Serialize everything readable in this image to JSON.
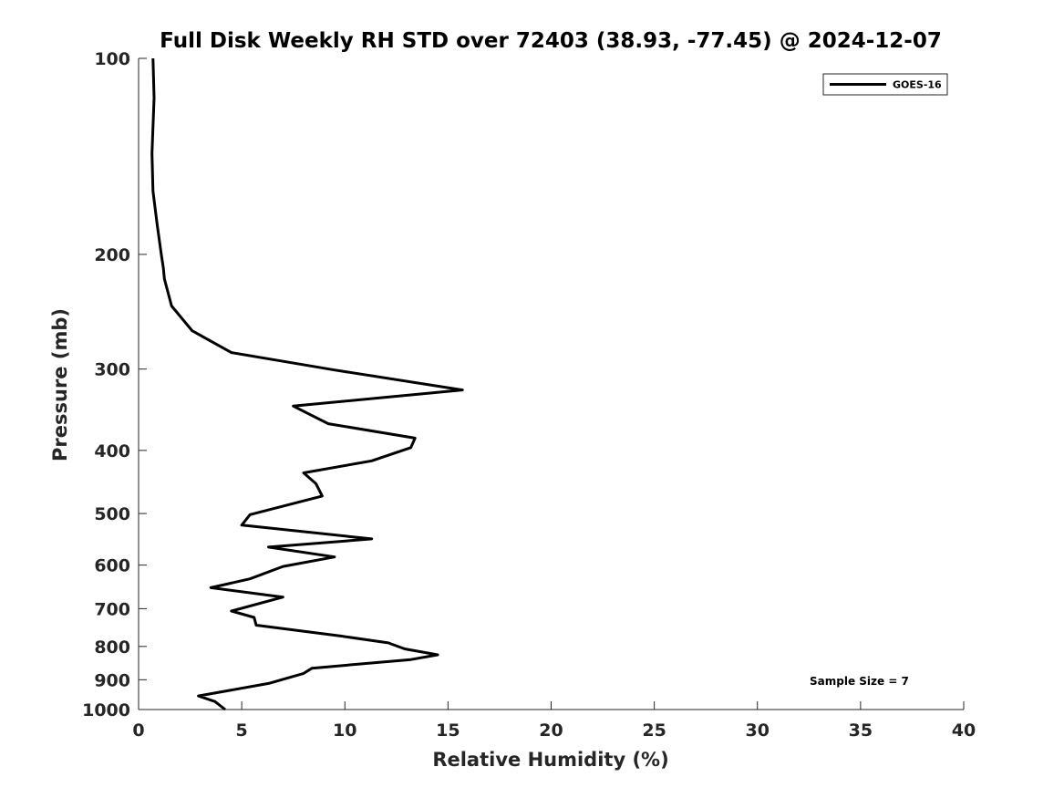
{
  "chart_data": {
    "type": "line",
    "title": "Full Disk Weekly RH STD over 72403 (38.93, -77.45) @ 2024-12-07",
    "xlabel": "Relative Humidity (%)",
    "ylabel": "Pressure (mb)",
    "xlim": [
      0,
      40
    ],
    "ylim": [
      100,
      1000
    ],
    "y_scale": "log",
    "y_reversed": true,
    "grid": false,
    "legend_position": "top-right",
    "annotation": "Sample Size = 7",
    "x_ticks": [
      0,
      5,
      10,
      15,
      20,
      25,
      30,
      35,
      40
    ],
    "x_tick_labels": [
      "0",
      "5",
      "10",
      "15",
      "20",
      "25",
      "30",
      "35",
      "40"
    ],
    "y_ticks": [
      100,
      200,
      300,
      400,
      500,
      600,
      700,
      800,
      900,
      1000
    ],
    "y_tick_labels": [
      "100",
      "200",
      "300",
      "400",
      "500",
      "600",
      "700",
      "800",
      "900",
      "1000"
    ],
    "series": [
      {
        "name": "GOES-16",
        "color": "#000000",
        "points": [
          [
            0.7,
            100
          ],
          [
            0.75,
            115
          ],
          [
            0.65,
            140
          ],
          [
            0.7,
            160
          ],
          [
            0.9,
            180
          ],
          [
            1.1,
            200
          ],
          [
            1.2,
            210
          ],
          [
            1.25,
            218
          ],
          [
            1.6,
            240
          ],
          [
            2.6,
            262
          ],
          [
            4.5,
            283
          ],
          [
            9.5,
            301
          ],
          [
            15.7,
            323
          ],
          [
            7.5,
            342
          ],
          [
            9.2,
            364
          ],
          [
            13.4,
            383
          ],
          [
            13.2,
            396
          ],
          [
            11.3,
            415
          ],
          [
            8.0,
            433
          ],
          [
            8.6,
            450
          ],
          [
            8.9,
            470
          ],
          [
            5.4,
            502
          ],
          [
            5.0,
            521
          ],
          [
            11.3,
            547
          ],
          [
            6.3,
            563
          ],
          [
            9.5,
            583
          ],
          [
            7.0,
            603
          ],
          [
            5.4,
            630
          ],
          [
            3.5,
            650
          ],
          [
            7.0,
            672
          ],
          [
            4.5,
            706
          ],
          [
            5.6,
            722
          ],
          [
            5.7,
            742
          ],
          [
            9.8,
            771
          ],
          [
            12.1,
            790
          ],
          [
            12.9,
            807
          ],
          [
            14.5,
            824
          ],
          [
            13.2,
            838
          ],
          [
            8.4,
            864
          ],
          [
            8.0,
            880
          ],
          [
            6.3,
            912
          ],
          [
            2.9,
            953
          ],
          [
            3.7,
            972
          ],
          [
            4.2,
            1000
          ]
        ]
      }
    ]
  }
}
